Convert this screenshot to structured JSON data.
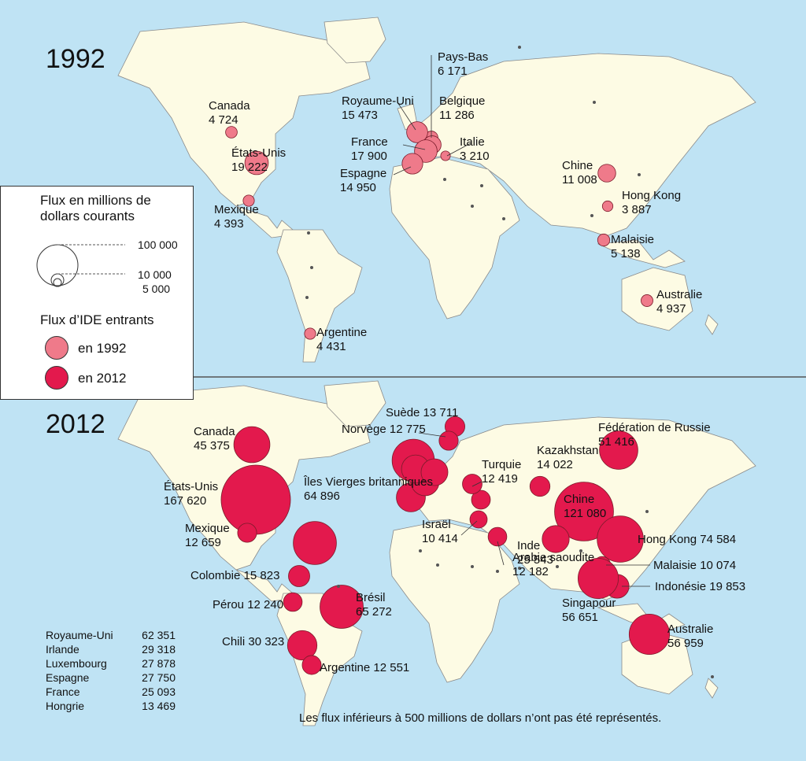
{
  "colors": {
    "ocean": "#bfe3f4",
    "land": "#fdfbe4",
    "border": "#8a8a8a",
    "flux_1992": "#ef7a8a",
    "flux_2012": "#e3194d"
  },
  "panels": [
    {
      "title": "1992",
      "labels": [
        {
          "name": "Canada",
          "value": "4 724"
        },
        {
          "name": "États-Unis",
          "value": "19 222"
        },
        {
          "name": "Mexique",
          "value": "4 393"
        },
        {
          "name": "Argentine",
          "value": "4 431"
        },
        {
          "name": "Pays-Bas",
          "value": "6 171"
        },
        {
          "name": "Royaume-Uni",
          "value": "15 473"
        },
        {
          "name": "Belgique",
          "value": "11 286"
        },
        {
          "name": "France",
          "value": "17 900"
        },
        {
          "name": "Italie",
          "value": "3 210"
        },
        {
          "name": "Espagne",
          "value": "14 950"
        },
        {
          "name": "Chine",
          "value": "11 008"
        },
        {
          "name": "Hong Kong",
          "value": "3 887"
        },
        {
          "name": "Malaisie",
          "value": "5 138"
        },
        {
          "name": "Australie",
          "value": "4 937"
        }
      ]
    },
    {
      "title": "2012",
      "labels": [
        {
          "name": "Canada",
          "value": "45 375"
        },
        {
          "name": "États-Unis",
          "value": "167 620"
        },
        {
          "name": "Îles Vierges britanniques",
          "value": "64 896"
        },
        {
          "name": "Mexique",
          "value": "12 659"
        },
        {
          "name": "Colombie",
          "value": "15 823"
        },
        {
          "name": "Pérou",
          "value": "12 240"
        },
        {
          "name": "Brésil",
          "value": "65 272"
        },
        {
          "name": "Chili",
          "value": "30 323"
        },
        {
          "name": "Argentine",
          "value": "12 551"
        },
        {
          "name": "Suède",
          "value": "13 711"
        },
        {
          "name": "Norvège",
          "value": "12 775"
        },
        {
          "name": "Turquie",
          "value": "12 419"
        },
        {
          "name": "Kazakhstan",
          "value": "14 022"
        },
        {
          "name": "Fédération de Russie",
          "value": "51 416"
        },
        {
          "name": "Chine",
          "value": "121 080"
        },
        {
          "name": "Israël",
          "value": "10 414"
        },
        {
          "name": "Inde",
          "value": "25 543"
        },
        {
          "name": "Arabie saoudite",
          "value": "12 182"
        },
        {
          "name": "Hong Kong",
          "value": "74 584"
        },
        {
          "name": "Malaisie",
          "value": "10 074"
        },
        {
          "name": "Indonésie",
          "value": "19 853"
        },
        {
          "name": "Singapour",
          "value": "56 651"
        },
        {
          "name": "Australie",
          "value": "56 959"
        }
      ]
    }
  ],
  "legend": {
    "title": "Flux en millions de dollars courants",
    "scale_values": [
      "100 000",
      "10 000",
      "5 000"
    ],
    "subtitle": "Flux d’IDE entrants",
    "items": [
      "en 1992",
      "en 2012"
    ]
  },
  "summary_2012": [
    {
      "name": "Royaume-Uni",
      "value": "62 351"
    },
    {
      "name": "Irlande",
      "value": "29 318"
    },
    {
      "name": "Luxembourg",
      "value": "27 878"
    },
    {
      "name": "Espagne",
      "value": "27 750"
    },
    {
      "name": "France",
      "value": "25 093"
    },
    {
      "name": "Hongrie",
      "value": "13 469"
    }
  ],
  "footnote": "Les flux inférieurs à 500 millions de dollars n’ont pas été représentés."
}
